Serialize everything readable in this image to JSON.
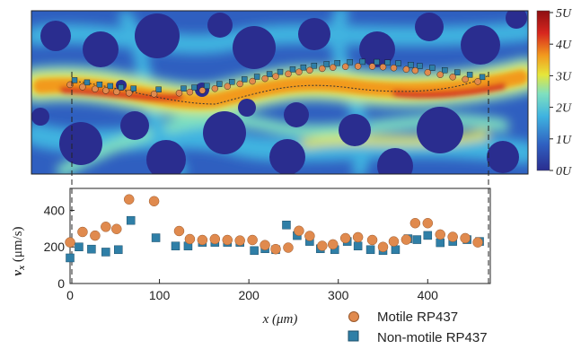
{
  "colors": {
    "motile": "#e08a4e",
    "motile_edge": "#9a5a2e",
    "nonmotile": "#2f7fa7",
    "nonmotile_edge": "#1c4f6a",
    "colormap": [
      "#2a2d8f",
      "#2f5fc0",
      "#3fb3e0",
      "#7fe0c0",
      "#e6e63a",
      "#f29a1e",
      "#d7261e",
      "#8e0f12"
    ]
  },
  "heatmap": {
    "type": "heatmap",
    "colorbar_ticks": [
      "0U",
      "1U",
      "2U",
      "3U",
      "4U",
      "5U"
    ],
    "colorbar_range": [
      0,
      5
    ]
  },
  "chart_data": {
    "type": "scatter",
    "xlabel": "x (μm)",
    "ylabel": "v_x (μm/s)",
    "xlim": [
      0,
      470
    ],
    "ylim": [
      0,
      520
    ],
    "xticks": [
      "0",
      "100",
      "200",
      "300",
      "400"
    ],
    "yticks": [
      "0",
      "200",
      "400"
    ],
    "legend_position": "bottom-right",
    "series": [
      {
        "name": "Motile RP437",
        "x": [
          0,
          14,
          28,
          40,
          52,
          66,
          94,
          122,
          134,
          148,
          162,
          176,
          190,
          204,
          218,
          230,
          244,
          256,
          268,
          282,
          294,
          308,
          322,
          338,
          350,
          362,
          376,
          386,
          400,
          414,
          428,
          442,
          456
        ],
        "y": [
          225,
          282,
          262,
          310,
          298,
          460,
          450,
          287,
          243,
          238,
          243,
          238,
          235,
          238,
          210,
          188,
          196,
          288,
          260,
          206,
          214,
          248,
          253,
          238,
          200,
          230,
          240,
          330,
          330,
          268,
          255,
          248,
          225
        ]
      },
      {
        "name": "Non-motile RP437",
        "x": [
          0,
          10,
          24,
          40,
          54,
          68,
          96,
          118,
          132,
          148,
          162,
          176,
          190,
          206,
          218,
          230,
          242,
          254,
          268,
          280,
          296,
          310,
          322,
          336,
          350,
          364,
          378,
          388,
          400,
          414,
          428,
          444,
          458
        ],
        "y": [
          140,
          200,
          188,
          172,
          185,
          345,
          250,
          205,
          205,
          225,
          225,
          225,
          225,
          180,
          190,
          185,
          320,
          262,
          230,
          190,
          185,
          230,
          205,
          185,
          180,
          185,
          245,
          240,
          263,
          223,
          230,
          240,
          230
        ]
      }
    ]
  }
}
